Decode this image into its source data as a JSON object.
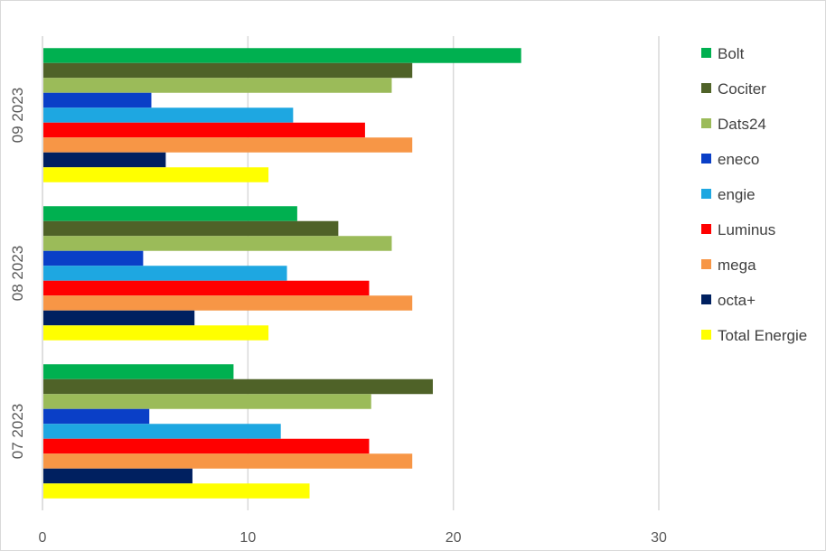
{
  "chart_data": {
    "type": "bar",
    "orientation": "horizontal",
    "title": "",
    "xlabel": "",
    "ylabel": "",
    "xlim": [
      0,
      30
    ],
    "x_ticks": [
      "0",
      "10",
      "20",
      "30"
    ],
    "grid": true,
    "legend_position": "right",
    "categories": [
      "09 2023",
      "08 2023",
      "07 2023"
    ],
    "series": [
      {
        "name": "Bolt",
        "color": "#00b050",
        "values": [
          23.3,
          12.4,
          9.3
        ]
      },
      {
        "name": "Cociter",
        "color": "#4f6228",
        "values": [
          18.0,
          14.4,
          19.0
        ]
      },
      {
        "name": "Dats24",
        "color": "#9bbb59",
        "values": [
          17.0,
          17.0,
          16.0
        ]
      },
      {
        "name": "eneco",
        "color": "#0a3fc7",
        "values": [
          5.3,
          4.9,
          5.2
        ]
      },
      {
        "name": "engie",
        "color": "#1ea7e1",
        "values": [
          12.2,
          11.9,
          11.6
        ]
      },
      {
        "name": "Luminus",
        "color": "#ff0000",
        "values": [
          15.7,
          15.9,
          15.9
        ]
      },
      {
        "name": "mega",
        "color": "#f79646",
        "values": [
          18.0,
          18.0,
          18.0
        ]
      },
      {
        "name": "octa+",
        "color": "#002060",
        "values": [
          6.0,
          7.4,
          7.3
        ]
      },
      {
        "name": "Total Energie",
        "color": "#ffff00",
        "values": [
          11.0,
          11.0,
          13.0
        ]
      }
    ]
  }
}
